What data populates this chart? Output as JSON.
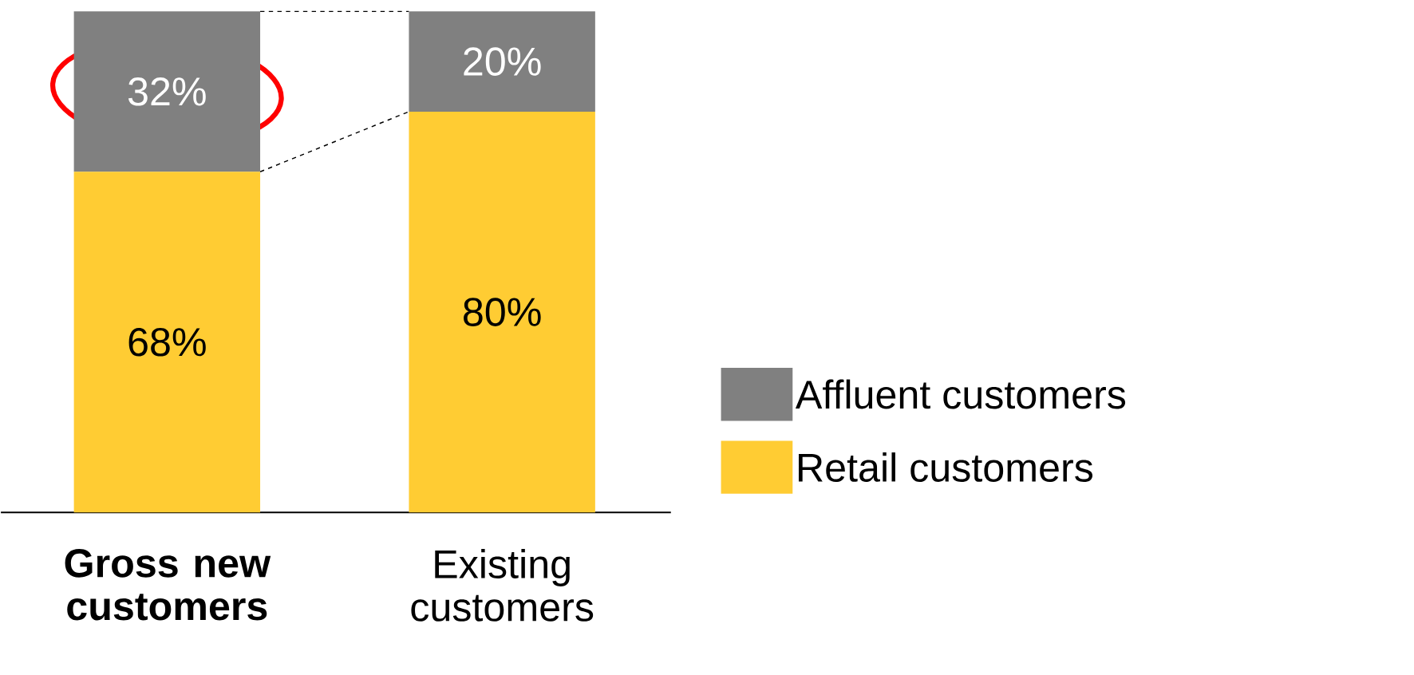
{
  "chart_data": {
    "type": "bar",
    "stacked": true,
    "categories": [
      "**Gross new customers**",
      "Existing customers"
    ],
    "series": [
      {
        "name": "Retail customers",
        "color": "#ffcc33",
        "values": [
          68,
          80
        ],
        "value_labels": [
          "68%",
          "80%"
        ]
      },
      {
        "name": "Affluent customers",
        "color": "#808080",
        "values": [
          32,
          20
        ],
        "value_labels": [
          "32%",
          "20%"
        ]
      }
    ],
    "legend": "right"
  }
}
